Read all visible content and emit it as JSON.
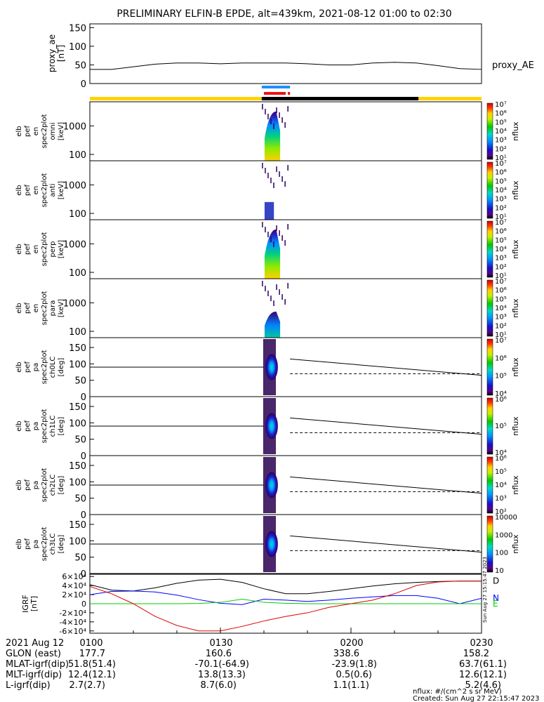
{
  "title": "PRELIMINARY ELFIN-B EPDE, alt=439km, 2021-08-12 01:00 to 02:30",
  "chart_data": [
    {
      "type": "line",
      "panel": "proxy_ae",
      "ylabel": [
        "proxy_ae",
        "[nT]"
      ],
      "legend": "proxy_AE",
      "ylim": [
        0,
        160
      ],
      "yticks": [
        "0",
        "50",
        "100",
        "150"
      ],
      "time_min": [
        0,
        5,
        10,
        15,
        20,
        25,
        30,
        35,
        40,
        45,
        50,
        55,
        60,
        65,
        70,
        75,
        80,
        85,
        90
      ],
      "values": [
        38,
        38,
        45,
        52,
        55,
        55,
        53,
        55,
        55,
        55,
        53,
        50,
        50,
        55,
        57,
        55,
        48,
        40,
        38
      ]
    },
    {
      "type": "heatmap",
      "panel": "omni",
      "ylabel": [
        "elb",
        "pef",
        "en",
        "spec2plot",
        "omni",
        "[keV]"
      ],
      "ylog": true,
      "ylim": [
        60,
        7000
      ],
      "yticks": [
        "100",
        "1000"
      ],
      "colorbar": {
        "label": "nflux",
        "log": true,
        "range": [
          10,
          10000000
        ],
        "ticks": [
          "10¹",
          "10²",
          "10³",
          "10⁴",
          "10⁵",
          "10⁶",
          "10⁷"
        ]
      }
    },
    {
      "type": "heatmap",
      "panel": "anti",
      "ylabel": [
        "elb",
        "pef",
        "en",
        "spec2plot",
        "anti",
        "[keV]"
      ],
      "ylog": true,
      "ylim": [
        60,
        7000
      ],
      "yticks": [
        "100",
        "1000"
      ],
      "colorbar": {
        "label": "nflux",
        "log": true,
        "range": [
          10,
          10000000
        ],
        "ticks": [
          "10¹",
          "10²",
          "10³",
          "10⁴",
          "10⁵",
          "10⁶",
          "10⁷"
        ]
      }
    },
    {
      "type": "heatmap",
      "panel": "perp",
      "ylabel": [
        "elb",
        "pef",
        "en",
        "spec2plot",
        "perp",
        "[keV]"
      ],
      "ylog": true,
      "ylim": [
        60,
        7000
      ],
      "yticks": [
        "100",
        "1000"
      ],
      "colorbar": {
        "label": "nflux",
        "log": true,
        "range": [
          10,
          10000000
        ],
        "ticks": [
          "10¹",
          "10²",
          "10³",
          "10⁴",
          "10⁵",
          "10⁶",
          "10⁷"
        ]
      }
    },
    {
      "type": "heatmap",
      "panel": "para",
      "ylabel": [
        "elb",
        "pef",
        "en",
        "spec2plot",
        "para",
        "[keV]"
      ],
      "ylog": true,
      "ylim": [
        60,
        7000
      ],
      "yticks": [
        "100",
        "1000"
      ],
      "colorbar": {
        "label": "nflux",
        "log": true,
        "range": [
          10,
          10000000
        ],
        "ticks": [
          "10¹",
          "10²",
          "10³",
          "10⁴",
          "10⁵",
          "10⁶",
          "10⁷"
        ]
      }
    },
    {
      "type": "heatmap",
      "panel": "ch0LC",
      "ylabel": [
        "elb",
        "pef",
        "pa",
        "spec2plot",
        "ch0LC",
        "[deg]"
      ],
      "ylim": [
        0,
        180
      ],
      "yticks": [
        "0",
        "50",
        "100",
        "150"
      ],
      "colorbar": {
        "label": "nflux",
        "log": true,
        "range": [
          1000,
          10000000
        ],
        "ticks": [
          "10⁴",
          "10⁵",
          "10⁶",
          "10⁷"
        ]
      }
    },
    {
      "type": "heatmap",
      "panel": "ch1LC",
      "ylabel": [
        "elb",
        "pef",
        "pa",
        "spec2plot",
        "ch1LC",
        "[deg]"
      ],
      "ylim": [
        0,
        180
      ],
      "yticks": [
        "0",
        "50",
        "100",
        "150"
      ],
      "colorbar": {
        "label": "nflux",
        "log": true,
        "range": [
          1000,
          10000000
        ],
        "ticks": [
          "10⁴",
          "10⁵",
          "10⁶"
        ]
      }
    },
    {
      "type": "heatmap",
      "panel": "ch2LC",
      "ylabel": [
        "elb",
        "pef",
        "pa",
        "spec2plot",
        "ch2LC",
        "[deg]"
      ],
      "ylim": [
        0,
        180
      ],
      "yticks": [
        "0",
        "50",
        "100",
        "150"
      ],
      "colorbar": {
        "label": "nflux",
        "log": true,
        "range": [
          60,
          1000000
        ],
        "ticks": [
          "10²",
          "10³",
          "10⁴",
          "10⁵",
          "10⁶"
        ]
      }
    },
    {
      "type": "heatmap",
      "panel": "ch3LC",
      "ylabel": [
        "elb",
        "pef",
        "pa",
        "spec2plot",
        "ch3LC",
        "[deg]"
      ],
      "ylim": [
        0,
        180
      ],
      "yticks": [
        "0",
        "50",
        "100",
        "150"
      ],
      "colorbar": {
        "label": "nflux",
        "log": true,
        "range": [
          10,
          10000
        ],
        "ticks": [
          "10",
          "100",
          "1000",
          "10000"
        ]
      }
    },
    {
      "type": "line",
      "panel": "IGRF",
      "ylabel": [
        "IGRF",
        "[nT]"
      ],
      "ylim": [
        -65000,
        65000
      ],
      "yticks": [
        "-6×10⁴",
        "-4×10⁴",
        "-2×10⁴",
        "0",
        "2×10⁴",
        "4×10⁴",
        "6×10⁴"
      ],
      "time_min": [
        0,
        5,
        10,
        15,
        20,
        25,
        30,
        35,
        40,
        45,
        50,
        55,
        60,
        65,
        70,
        75,
        80,
        85,
        90
      ],
      "series": [
        {
          "name": "D",
          "color": "#000000",
          "values": [
            42000,
            30000,
            28000,
            35000,
            45000,
            52000,
            54000,
            47000,
            33000,
            22000,
            22000,
            27000,
            33000,
            39000,
            44000,
            47000,
            49000,
            50000,
            50000
          ]
        },
        {
          "name": "N",
          "color": "#0000ff",
          "values": [
            20000,
            27000,
            28000,
            26000,
            19000,
            9000,
            1000,
            -2000,
            10000,
            8000,
            5000,
            8000,
            12000,
            15000,
            18000,
            18000,
            12000,
            0,
            12000
          ]
        },
        {
          "name": "E",
          "color": "#00cc00",
          "values": [
            0,
            0,
            0,
            0,
            0,
            500,
            3000,
            10000,
            3000,
            1000,
            0,
            0,
            0,
            0,
            0,
            0,
            0,
            0,
            0
          ]
        },
        {
          "name": "",
          "color": "#dd0000",
          "values": [
            38000,
            22000,
            0,
            -28000,
            -48000,
            -60000,
            -60000,
            -50000,
            -38000,
            -28000,
            -20000,
            -8000,
            0,
            8000,
            22000,
            40000,
            48000,
            50000,
            50000
          ]
        }
      ]
    }
  ],
  "annotations": {
    "date_label": "2021 Aug 12",
    "rows": [
      {
        "label": "GLON (east)",
        "values": [
          "177.7",
          "160.6",
          "338.6",
          "158.2"
        ]
      },
      {
        "label": "MLAT-igrf(dip)",
        "values": [
          "51.8(51.4)",
          "-70.1(-64.9)",
          "-23.9(1.8)",
          "63.7(61.1)"
        ]
      },
      {
        "label": "MLT-igrf(dip)",
        "values": [
          "12.4(12.1)",
          "13.8(13.3)",
          "0.5(0.6)",
          "12.6(12.1)"
        ]
      },
      {
        "label": "L-igrf(dip)",
        "values": [
          "2.7(2.7)",
          "8.7(6.0)",
          "1.1(1.1)",
          "5.2(4.6)"
        ]
      }
    ],
    "time_ticks": [
      "0100",
      "0130",
      "0200",
      "0230"
    ],
    "nflux_units": "nflux: #/(cm^2 s sr MeV)",
    "created": "Created: Sun Aug 27 22:15:47 2023",
    "side_stamp": "Sun Aug 27 15:15:47 2023"
  },
  "colors": {
    "orbit_bar_yellow": "#ffd400",
    "orbit_bar_black": "#000000",
    "science_zone_blue": "#1e90ff",
    "science_zone_red": "#ee1111"
  }
}
